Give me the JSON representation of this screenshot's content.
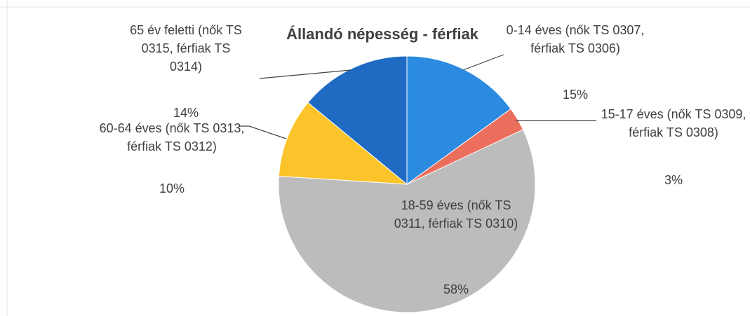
{
  "chart_data": {
    "type": "pie",
    "title": "Állandó népesség - férfiak",
    "categories": [
      "0-14 éves (nők TS 0307, férfiak TS 0306)",
      "15-17 éves (nők TS 0309, férfiak TS 0308)",
      "18-59 éves (nők TS 0311, férfiak TS 0310)",
      "60-64 éves (nők TS 0313, férfiak TS 0312)",
      "65 év feletti (nők TS 0315, férfiak TS 0314)"
    ],
    "values": [
      15,
      3,
      58,
      10,
      14
    ],
    "value_labels": [
      "15%",
      "3%",
      "58%",
      "10%",
      "14%"
    ],
    "colors": [
      "#2b8be0",
      "#ec6f5e",
      "#bcbcbc",
      "#fac42a",
      "#1f6bc4"
    ]
  }
}
